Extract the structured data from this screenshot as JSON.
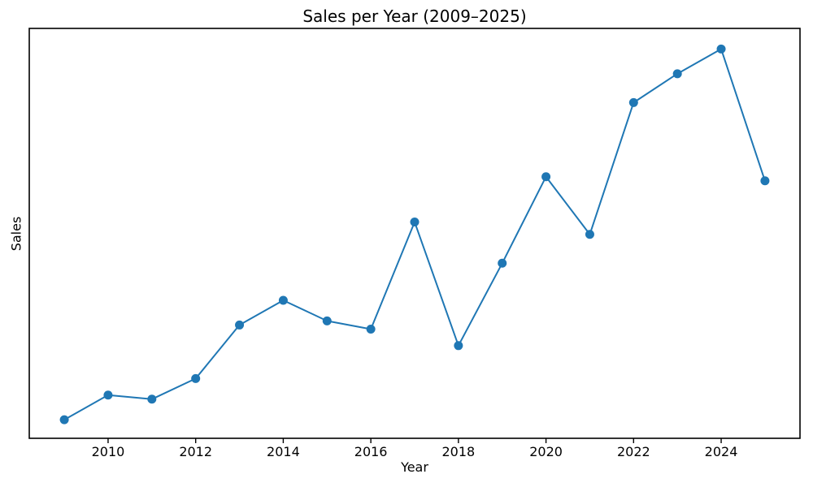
{
  "window": {
    "background_color": "#ffffff"
  },
  "chart_data": {
    "type": "line",
    "title": "Sales per Year (2009–2025)",
    "xlabel": "Year",
    "ylabel": "Sales",
    "series": [
      {
        "name": "Sales",
        "x": [
          2009,
          2010,
          2011,
          2012,
          2013,
          2014,
          2015,
          2016,
          2017,
          2018,
          2019,
          2020,
          2021,
          2022,
          2023,
          2024,
          2025
        ],
        "values": [
          5,
          11,
          10,
          15,
          28,
          34,
          29,
          27,
          53,
          23,
          43,
          64,
          50,
          82,
          89,
          95,
          63
        ]
      }
    ],
    "x_ticks": [
      2010,
      2012,
      2014,
      2016,
      2018,
      2020,
      2022,
      2024
    ],
    "x_tick_labels": [
      "2010",
      "2012",
      "2014",
      "2016",
      "2018",
      "2020",
      "2022",
      "2024"
    ],
    "y_tick_labels": [],
    "xlim": [
      2008.2,
      2025.8
    ],
    "ylim": [
      0.5,
      100
    ],
    "grid": false,
    "legend": null,
    "line_color": "#1f77b4",
    "marker": "circle",
    "spine_color": "#000000",
    "plot_background": "#ffffff"
  }
}
